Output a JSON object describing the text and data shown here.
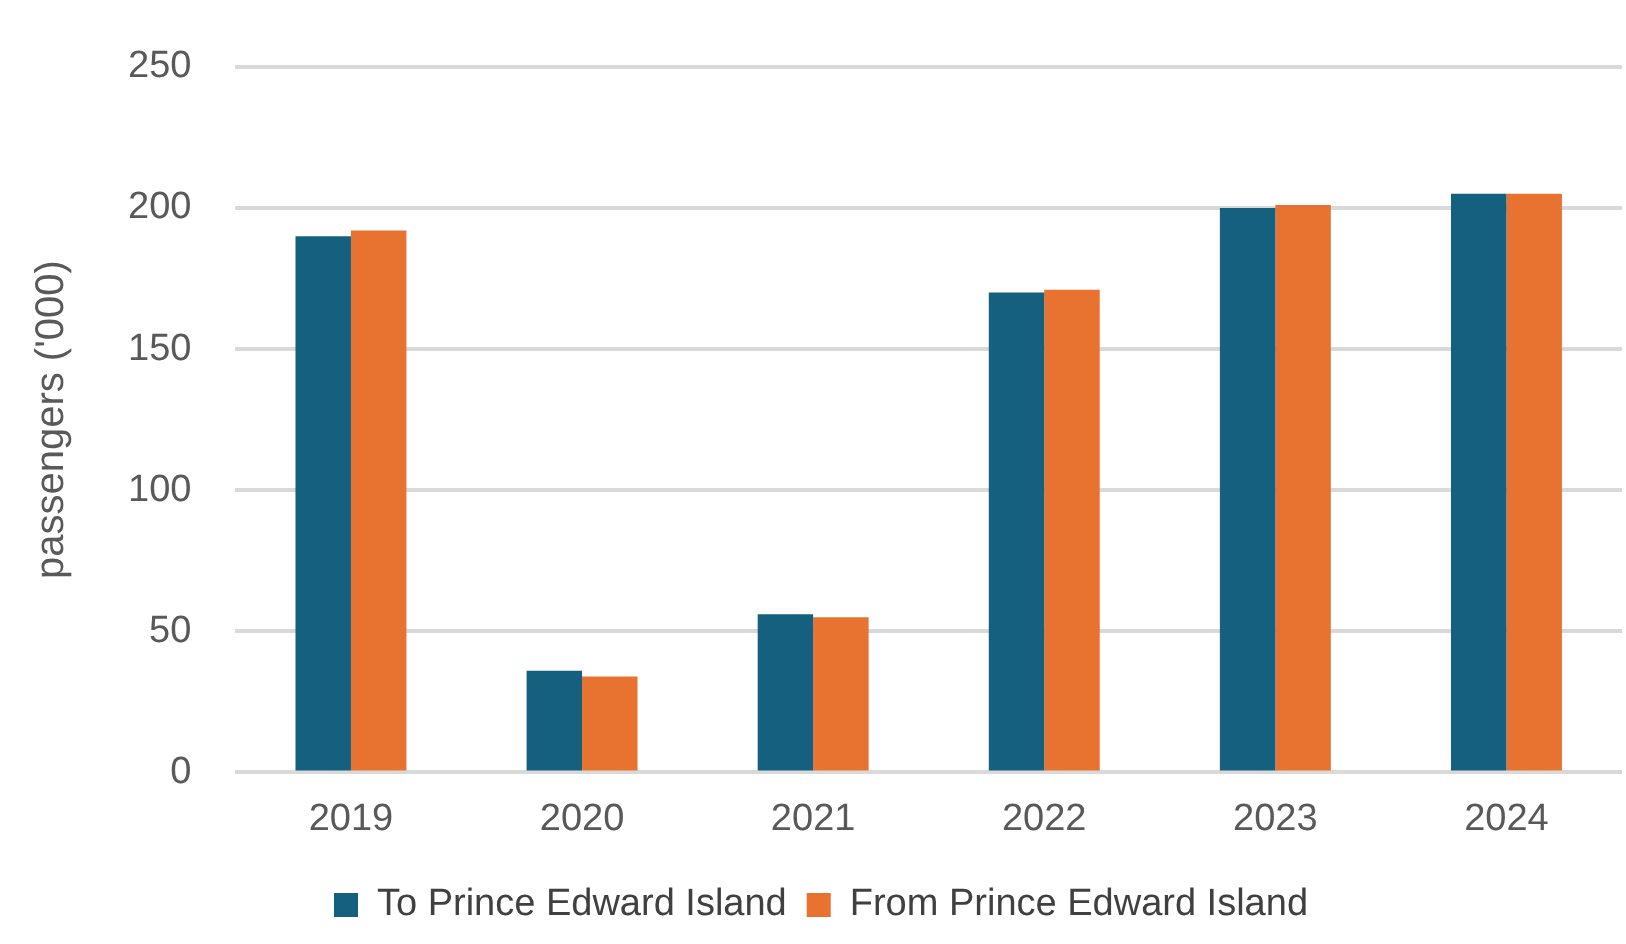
{
  "chart_data": {
    "type": "bar",
    "ylabel": "passengers ('000)",
    "categories": [
      "2019",
      "2020",
      "2021",
      "2022",
      "2023",
      "2024"
    ],
    "series": [
      {
        "name": "To Prince Edward Island",
        "color": "#16607f",
        "values": [
          190,
          36,
          56,
          170,
          200,
          205
        ]
      },
      {
        "name": "From Prince Edward Island",
        "color": "#e87230",
        "values": [
          192,
          34,
          55,
          171,
          201,
          205
        ]
      }
    ],
    "ylim": [
      0,
      250
    ],
    "yticks": [
      0,
      50,
      100,
      150,
      200,
      250
    ],
    "grid": "y",
    "legend": "bottom"
  }
}
